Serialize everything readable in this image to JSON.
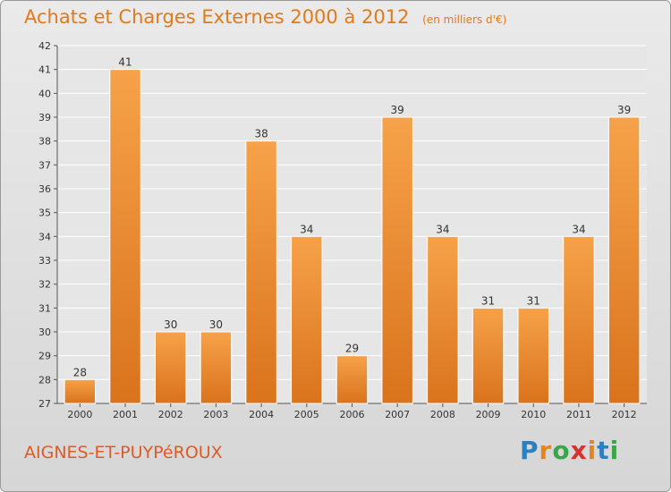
{
  "chart_data": {
    "type": "bar",
    "title": "Achats et Charges Externes 2000 à 2012",
    "unit_note": "(en milliers d'€)",
    "categories": [
      "2000",
      "2001",
      "2002",
      "2003",
      "2004",
      "2005",
      "2006",
      "2007",
      "2008",
      "2009",
      "2010",
      "2011",
      "2012"
    ],
    "values": [
      28,
      41,
      30,
      30,
      38,
      34,
      29,
      39,
      34,
      31,
      31,
      34,
      39
    ],
    "ylim": [
      27,
      42
    ],
    "yticks": [
      27,
      28,
      29,
      30,
      31,
      32,
      33,
      34,
      35,
      36,
      37,
      38,
      39,
      40,
      41,
      42
    ],
    "grid": true,
    "bar_color": "#f0932f"
  },
  "footer": {
    "commune": "AIGNES-ET-PUYPéROUX",
    "brand_letters": [
      "P",
      "r",
      "o",
      "x",
      "i",
      "t",
      "i"
    ],
    "brand_colors": [
      "#2c7fc1",
      "#e8841c",
      "#3aa64a",
      "#d6322e",
      "#e8841c",
      "#2c7fc1",
      "#3aa64a"
    ]
  }
}
